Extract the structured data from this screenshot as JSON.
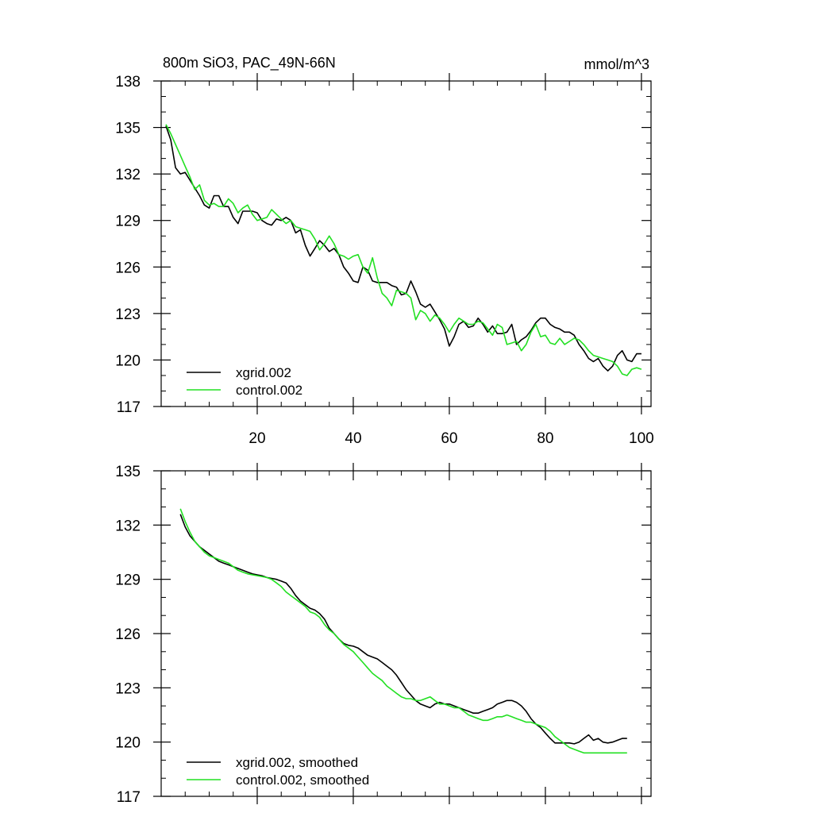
{
  "figure": {
    "title_left": "800m SiO3, PAC_49N-66N",
    "title_right": "mmol/m^3"
  },
  "chart_data": [
    {
      "type": "line",
      "title": "800m SiO3, PAC_49N-66N",
      "units": "mmol/m^3",
      "xlabel": "",
      "ylabel": "",
      "xlim": [
        0,
        102
      ],
      "ylim": [
        117,
        138
      ],
      "x_ticks": [
        20,
        40,
        60,
        80,
        100
      ],
      "y_ticks": [
        117,
        120,
        123,
        126,
        129,
        132,
        135,
        138
      ],
      "legend_position": "bottom-left",
      "x": [
        1,
        2,
        3,
        4,
        5,
        6,
        7,
        8,
        9,
        10,
        11,
        12,
        13,
        14,
        15,
        16,
        17,
        18,
        19,
        20,
        21,
        22,
        23,
        24,
        25,
        26,
        27,
        28,
        29,
        30,
        31,
        32,
        33,
        34,
        35,
        36,
        37,
        38,
        39,
        40,
        41,
        42,
        43,
        44,
        45,
        46,
        47,
        48,
        49,
        50,
        51,
        52,
        53,
        54,
        55,
        56,
        57,
        58,
        59,
        60,
        61,
        62,
        63,
        64,
        65,
        66,
        67,
        68,
        69,
        70,
        71,
        72,
        73,
        74,
        75,
        76,
        77,
        78,
        79,
        80,
        81,
        82,
        83,
        84,
        85,
        86,
        87,
        88,
        89,
        90,
        91,
        92,
        93,
        94,
        95,
        96,
        97,
        98,
        99,
        100
      ],
      "series": [
        {
          "name": "xgrid.002",
          "color": "#000000",
          "values": [
            135.1,
            134.2,
            132.4,
            132.0,
            132.1,
            131.6,
            131.1,
            130.6,
            130.0,
            129.8,
            130.6,
            130.6,
            129.9,
            129.9,
            129.2,
            128.8,
            129.6,
            129.6,
            129.6,
            129.5,
            129.0,
            128.8,
            128.7,
            129.1,
            129.0,
            129.2,
            129.0,
            128.2,
            128.4,
            127.4,
            126.7,
            127.2,
            127.7,
            127.4,
            127.0,
            127.2,
            126.8,
            126.0,
            125.6,
            125.1,
            125.0,
            126.0,
            125.8,
            125.1,
            125.0,
            125.0,
            125.0,
            124.8,
            124.7,
            124.2,
            124.3,
            125.1,
            124.4,
            123.6,
            123.4,
            123.6,
            123.1,
            122.6,
            122.0,
            120.9,
            121.5,
            122.3,
            122.5,
            122.1,
            122.2,
            122.7,
            122.3,
            121.8,
            122.2,
            121.7,
            121.7,
            121.8,
            122.3,
            121.0,
            121.3,
            121.5,
            121.9,
            122.4,
            122.7,
            122.7,
            122.3,
            122.1,
            122.0,
            121.8,
            121.8,
            121.6,
            121.0,
            120.6,
            120.1,
            119.9,
            120.1,
            119.6,
            119.3,
            119.6,
            120.3,
            120.6,
            120.0,
            119.9,
            120.4,
            120.4
          ]
        },
        {
          "name": "control.002",
          "color": "#22e022",
          "values": [
            135.2,
            134.6,
            133.9,
            133.2,
            132.5,
            131.8,
            131.0,
            131.3,
            130.3,
            130.0,
            130.1,
            129.9,
            129.9,
            130.4,
            130.1,
            129.5,
            129.8,
            130.0,
            129.4,
            129.0,
            129.1,
            129.2,
            129.7,
            129.4,
            129.1,
            128.8,
            129.0,
            128.6,
            128.5,
            128.4,
            128.3,
            127.8,
            127.1,
            127.5,
            128.0,
            127.5,
            126.8,
            126.7,
            126.5,
            126.7,
            126.8,
            126.0,
            125.6,
            126.6,
            125.3,
            124.3,
            124.0,
            123.5,
            124.5,
            124.4,
            124.3,
            124.0,
            122.6,
            123.2,
            123.0,
            122.5,
            122.9,
            122.7,
            122.3,
            121.8,
            122.3,
            122.7,
            122.5,
            122.3,
            122.3,
            122.5,
            122.4,
            122.0,
            121.6,
            122.3,
            122.1,
            121.0,
            121.1,
            121.2,
            120.6,
            121.0,
            121.8,
            122.3,
            121.5,
            121.6,
            121.1,
            121.0,
            121.4,
            121.0,
            121.2,
            121.4,
            121.3,
            121.0,
            120.6,
            120.3,
            120.2,
            120.1,
            120.0,
            119.9,
            119.6,
            119.1,
            119.0,
            119.4,
            119.5,
            119.4
          ]
        }
      ]
    },
    {
      "type": "line",
      "title": "",
      "xlabel": "",
      "ylabel": "",
      "xlim": [
        0,
        102
      ],
      "ylim": [
        117,
        135
      ],
      "x_ticks": [
        20,
        40,
        60,
        80,
        100
      ],
      "y_ticks": [
        117,
        120,
        123,
        126,
        129,
        132,
        135
      ],
      "legend_position": "bottom-left",
      "x": [
        4,
        5,
        6,
        7,
        8,
        9,
        10,
        11,
        12,
        13,
        14,
        15,
        16,
        17,
        18,
        19,
        20,
        21,
        22,
        23,
        24,
        25,
        26,
        27,
        28,
        29,
        30,
        31,
        32,
        33,
        34,
        35,
        36,
        37,
        38,
        39,
        40,
        41,
        42,
        43,
        44,
        45,
        46,
        47,
        48,
        49,
        50,
        51,
        52,
        53,
        54,
        55,
        56,
        57,
        58,
        59,
        60,
        61,
        62,
        63,
        64,
        65,
        66,
        67,
        68,
        69,
        70,
        71,
        72,
        73,
        74,
        75,
        76,
        77,
        78,
        79,
        80,
        81,
        82,
        83,
        84,
        85,
        86,
        87,
        88,
        89,
        90,
        91,
        92,
        93,
        94,
        95,
        96,
        97
      ],
      "series": [
        {
          "name": "xgrid.002, smoothed",
          "color": "#000000",
          "values": [
            132.6,
            131.9,
            131.4,
            131.1,
            130.8,
            130.6,
            130.4,
            130.2,
            130.0,
            129.9,
            129.8,
            129.7,
            129.6,
            129.5,
            129.4,
            129.3,
            129.25,
            129.2,
            129.1,
            129.05,
            129.0,
            128.9,
            128.8,
            128.5,
            128.1,
            127.8,
            127.6,
            127.4,
            127.3,
            127.1,
            126.8,
            126.3,
            126.0,
            125.7,
            125.45,
            125.35,
            125.3,
            125.2,
            125.0,
            124.8,
            124.7,
            124.6,
            124.4,
            124.2,
            124.0,
            123.7,
            123.3,
            122.9,
            122.6,
            122.3,
            122.1,
            122.0,
            121.9,
            122.1,
            122.2,
            122.1,
            122.1,
            122.0,
            121.9,
            121.8,
            121.7,
            121.6,
            121.6,
            121.7,
            121.8,
            121.9,
            122.1,
            122.2,
            122.3,
            122.3,
            122.2,
            122.0,
            121.7,
            121.3,
            121.0,
            120.8,
            120.5,
            120.2,
            119.95,
            119.95,
            119.95,
            119.95,
            119.9,
            120.0,
            120.2,
            120.4,
            120.1,
            120.2,
            120.0,
            119.95,
            120.0,
            120.1,
            120.2,
            120.2
          ]
        },
        {
          "name": "control.002, smoothed",
          "color": "#22e022",
          "values": [
            132.9,
            132.2,
            131.6,
            131.1,
            130.8,
            130.5,
            130.3,
            130.2,
            130.1,
            130.0,
            129.9,
            129.7,
            129.5,
            129.4,
            129.3,
            129.25,
            129.2,
            129.15,
            129.1,
            129.0,
            128.8,
            128.6,
            128.3,
            128.1,
            127.9,
            127.7,
            127.5,
            127.2,
            127.1,
            126.9,
            126.5,
            126.2,
            126.0,
            125.7,
            125.4,
            125.2,
            125.0,
            124.7,
            124.4,
            124.1,
            123.8,
            123.6,
            123.4,
            123.1,
            122.9,
            122.7,
            122.5,
            122.4,
            122.4,
            122.3,
            122.3,
            122.4,
            122.5,
            122.3,
            122.1,
            122.1,
            122.0,
            121.9,
            121.9,
            121.7,
            121.5,
            121.4,
            121.3,
            121.2,
            121.2,
            121.3,
            121.4,
            121.4,
            121.5,
            121.4,
            121.3,
            121.2,
            121.1,
            121.1,
            121.0,
            120.9,
            120.8,
            120.6,
            120.3,
            120.1,
            119.9,
            119.7,
            119.6,
            119.5,
            119.4,
            119.4,
            119.4,
            119.4,
            119.4,
            119.4,
            119.4,
            119.4,
            119.4,
            119.4
          ]
        }
      ]
    }
  ]
}
